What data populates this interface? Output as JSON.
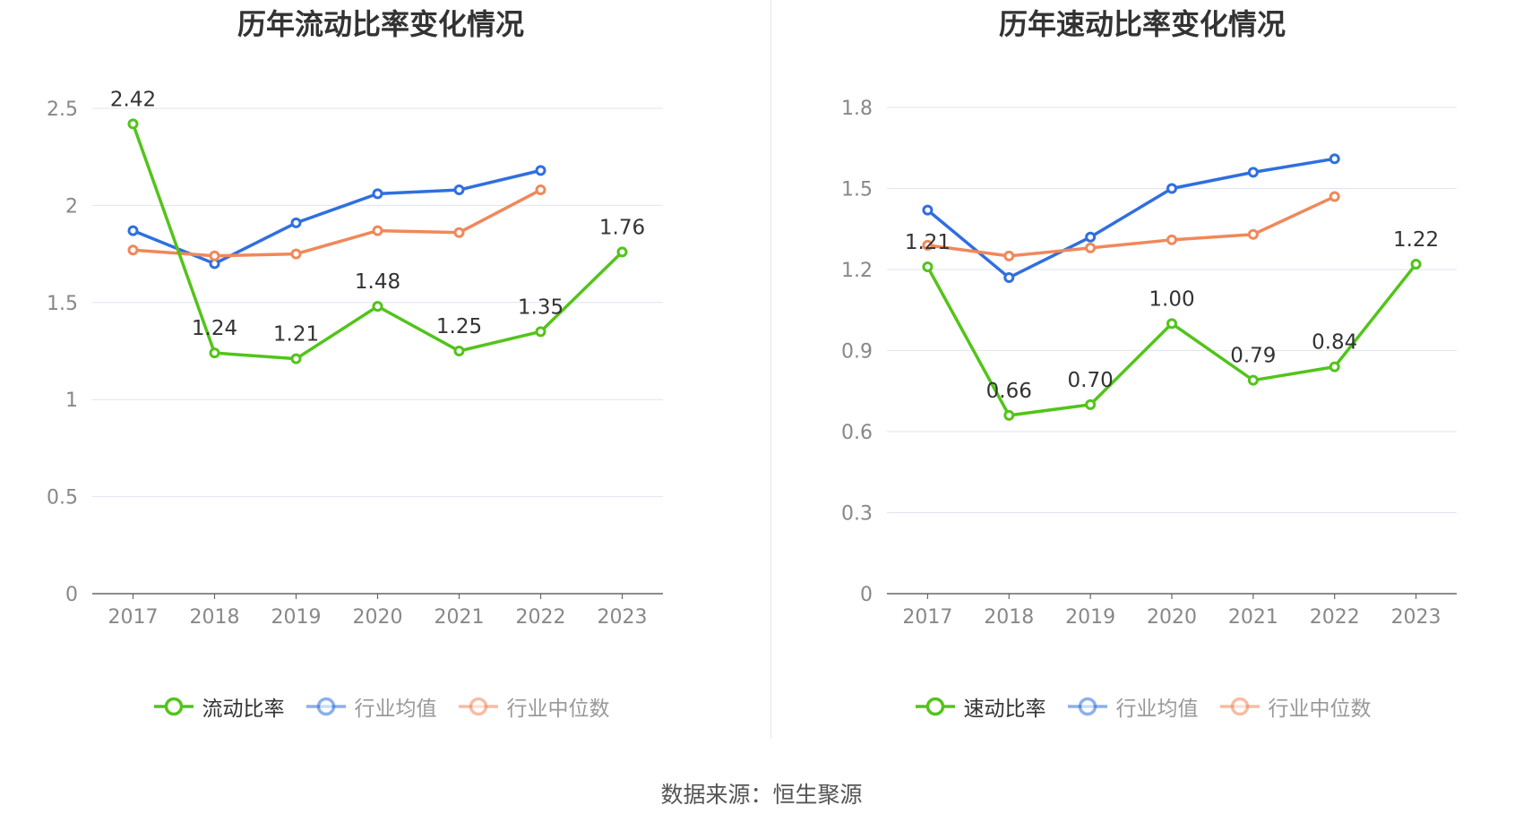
{
  "colors": {
    "main": "#52c41a",
    "avg": "#2f6fe0",
    "median": "#f0885a",
    "grid": "#dfe4f2",
    "axis": "#666666",
    "tick": "#888888"
  },
  "chart_data": [
    {
      "type": "line",
      "title": "历年流动比率变化情况",
      "categories": [
        "2017",
        "2018",
        "2019",
        "2020",
        "2021",
        "2022",
        "2023"
      ],
      "ylim": [
        0,
        2.5
      ],
      "yticks": [
        0,
        0.5,
        1,
        1.5,
        2,
        2.5
      ],
      "ytick_labels": [
        "0",
        "0.5",
        "1",
        "1.5",
        "2",
        "2.5"
      ],
      "grid": true,
      "legend_position": "bottom",
      "series": [
        {
          "name": "流动比率",
          "values": [
            2.42,
            1.24,
            1.21,
            1.48,
            1.25,
            1.35,
            1.76
          ],
          "labels": [
            "2.42",
            "1.24",
            "1.21",
            "1.48",
            "1.25",
            "1.35",
            "1.76"
          ],
          "color": "#52c41a"
        },
        {
          "name": "行业均值",
          "values": [
            1.87,
            1.7,
            1.91,
            2.06,
            2.08,
            2.18,
            null
          ],
          "color": "#2f6fe0"
        },
        {
          "name": "行业中位数",
          "values": [
            1.77,
            1.74,
            1.75,
            1.87,
            1.86,
            2.08,
            null
          ],
          "color": "#f0885a"
        }
      ]
    },
    {
      "type": "line",
      "title": "历年速动比率变化情况",
      "categories": [
        "2017",
        "2018",
        "2019",
        "2020",
        "2021",
        "2022",
        "2023"
      ],
      "ylim": [
        0,
        1.8
      ],
      "yticks": [
        0,
        0.3,
        0.6,
        0.9,
        1.2,
        1.5,
        1.8
      ],
      "ytick_labels": [
        "0",
        "0.3",
        "0.6",
        "0.9",
        "1.2",
        "1.5",
        "1.8"
      ],
      "grid": true,
      "legend_position": "bottom",
      "series": [
        {
          "name": "速动比率",
          "values": [
            1.21,
            0.66,
            0.7,
            1.0,
            0.79,
            0.84,
            1.22
          ],
          "labels": [
            "1.21",
            "0.66",
            "0.70",
            "1.00",
            "0.79",
            "0.84",
            "1.22"
          ],
          "color": "#52c41a"
        },
        {
          "name": "行业均值",
          "values": [
            1.42,
            1.17,
            1.32,
            1.5,
            1.56,
            1.61,
            null
          ],
          "color": "#2f6fe0"
        },
        {
          "name": "行业中位数",
          "values": [
            1.29,
            1.25,
            1.28,
            1.31,
            1.33,
            1.47,
            null
          ],
          "color": "#f0885a"
        }
      ]
    }
  ],
  "source_text": "数据来源：恒生聚源"
}
